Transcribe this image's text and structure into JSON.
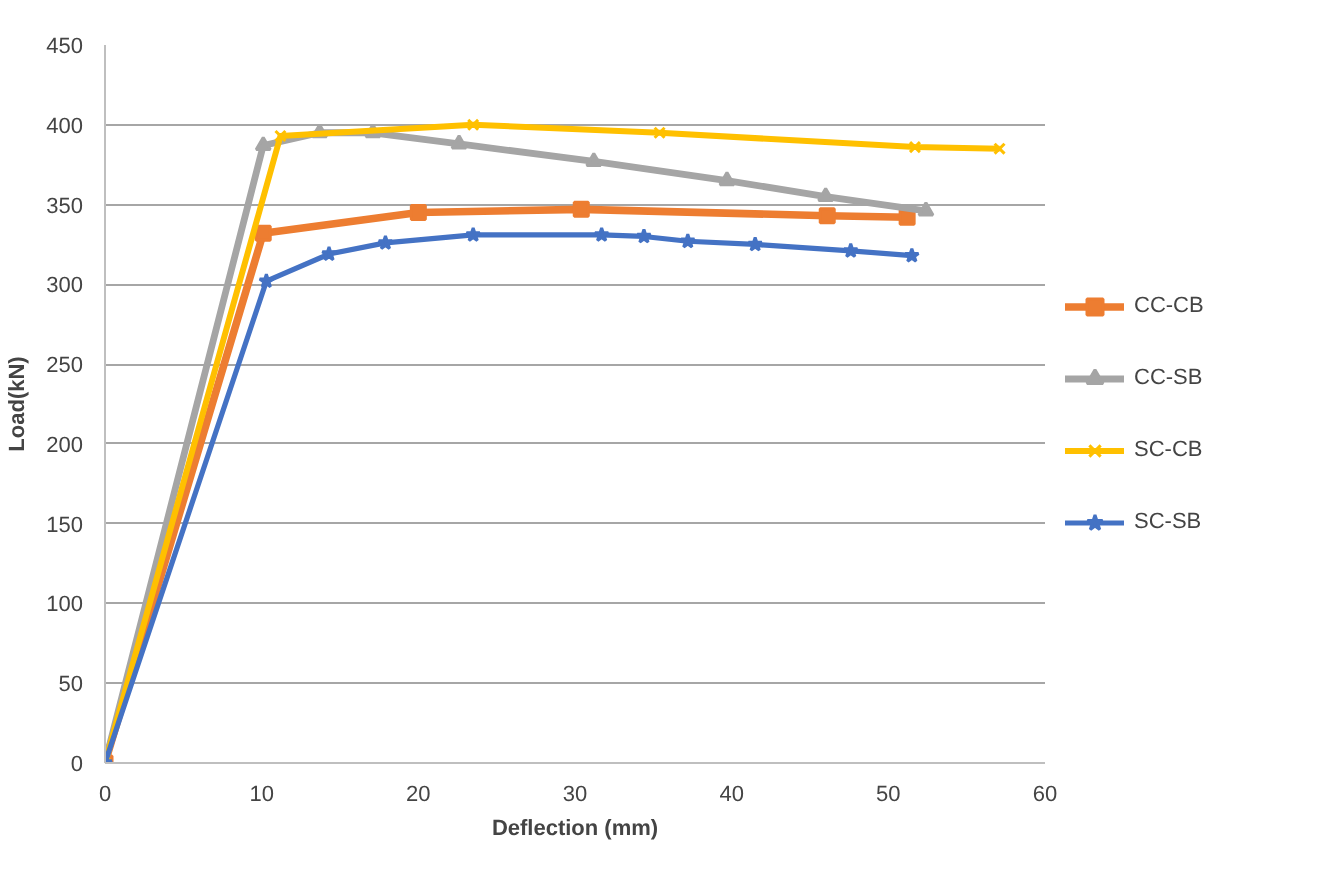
{
  "chart_data": {
    "type": "line",
    "xlabel": "Deflection (mm)",
    "ylabel": "Load(kN)",
    "xlim": [
      0,
      60
    ],
    "xticks": [
      0,
      10,
      20,
      30,
      40,
      50,
      60
    ],
    "ylim": [
      0,
      450
    ],
    "yticks": [
      0,
      50,
      100,
      150,
      200,
      250,
      300,
      350,
      400,
      450
    ],
    "grid": "y",
    "legend": "right",
    "series": [
      {
        "name": "CC-CB",
        "color": "#ed7d31",
        "marker": "square",
        "x": [
          0,
          10.1,
          20,
          30.4,
          46.1,
          51.2
        ],
        "values": [
          0,
          332,
          345,
          347,
          343,
          342
        ]
      },
      {
        "name": "CC-SB",
        "color": "#a5a5a5",
        "marker": "triangle",
        "x": [
          0,
          10.1,
          13.7,
          17.1,
          22.6,
          31.2,
          39.7,
          46,
          52.4
        ],
        "values": [
          0,
          387,
          395,
          395,
          388,
          377,
          365,
          355,
          346
        ]
      },
      {
        "name": "SC-CB",
        "color": "#ffc000",
        "marker": "cross",
        "x": [
          0,
          11.2,
          23.5,
          35.4,
          51.7,
          57.1
        ],
        "values": [
          0,
          393,
          400,
          395,
          386,
          385
        ]
      },
      {
        "name": "SC-SB",
        "color": "#4472c4",
        "marker": "star",
        "x": [
          0,
          10.3,
          14.3,
          17.9,
          23.5,
          31.7,
          34.4,
          37.2,
          41.5,
          47.6,
          51.5
        ],
        "values": [
          0,
          302,
          319,
          326,
          331,
          331,
          330,
          327,
          325,
          321,
          318
        ]
      }
    ]
  }
}
